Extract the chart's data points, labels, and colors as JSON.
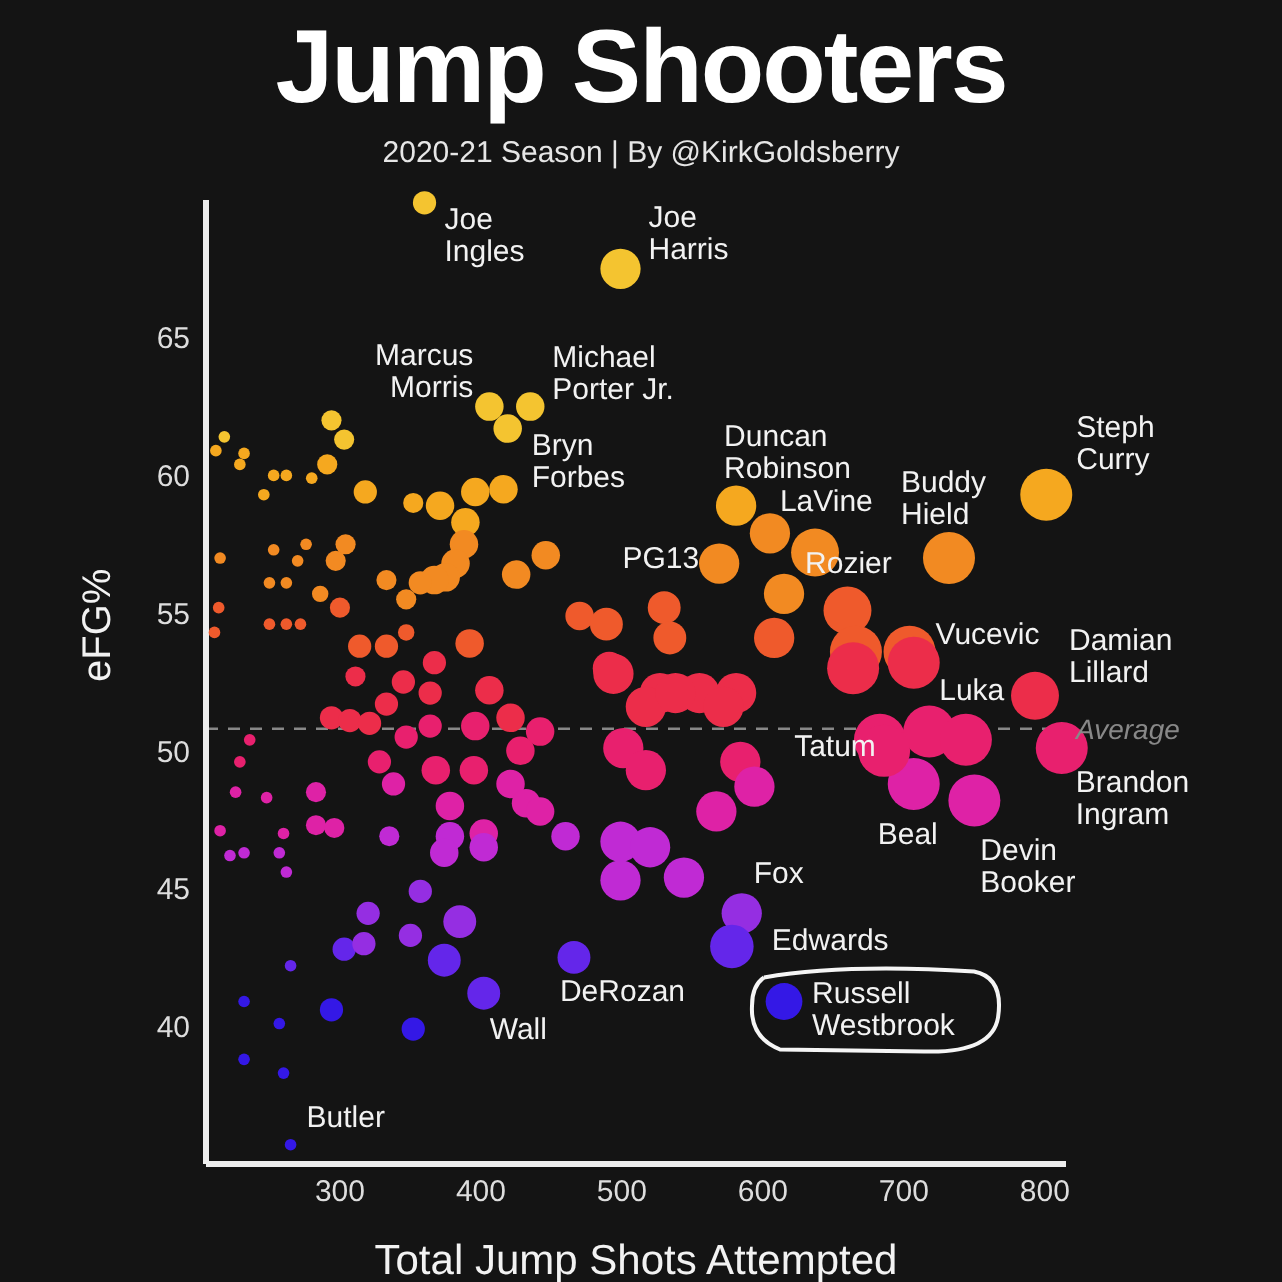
{
  "chart_data": {
    "type": "bubble",
    "title": "Jump Shooters",
    "subtitle": "2020-21 Season | By @KirkGoldsberry",
    "xlabel": "Total Jump Shots Attempted",
    "ylabel": "eFG%",
    "x": [
      360,
      499,
      406,
      435,
      419,
      581,
      605,
      637,
      569,
      732,
      801,
      704,
      793,
      718,
      812,
      683,
      707,
      750,
      585,
      578,
      615,
      466,
      402,
      265,
      294,
      303,
      291,
      318,
      352,
      371,
      396,
      416,
      389,
      388,
      382,
      375,
      367,
      357,
      446,
      425,
      333,
      347,
      304,
      297,
      300,
      286,
      470,
      489,
      530,
      534,
      347,
      218,
      212,
      232,
      229,
      253,
      262,
      246,
      280,
      215,
      253,
      276,
      270,
      250,
      262,
      250,
      262,
      272,
      214,
      211,
      615,
      660,
      608,
      666,
      491,
      314,
      333,
      367,
      311,
      345,
      364,
      406,
      392,
      494,
      527,
      555,
      333,
      294,
      307,
      321,
      347,
      364,
      396,
      421,
      442,
      428,
      328,
      368,
      395,
      421,
      501,
      517,
      338,
      283,
      378,
      432,
      442,
      567,
      378,
      402,
      402,
      374,
      283,
      296,
      335,
      460,
      499,
      520,
      499,
      544,
      357,
      320,
      385,
      350,
      303,
      317,
      374,
      294,
      352,
      265,
      232,
      257,
      232,
      260,
      236,
      229,
      226,
      248,
      260,
      215,
      222,
      232,
      257,
      262,
      517,
      538,
      581,
      572,
      584,
      594,
      664,
      707,
      686,
      744
    ],
    "values": [
      69.9,
      67.5,
      62.5,
      62.5,
      61.7,
      58.9,
      57.9,
      57.2,
      56.8,
      57.0,
      59.3,
      53.6,
      52.0,
      50.7,
      50.1,
      50.4,
      48.8,
      48.2,
      44.1,
      42.9,
      40.9,
      42.5,
      41.2,
      35.7,
      62.0,
      61.3,
      60.4,
      59.4,
      59.0,
      58.9,
      59.4,
      59.5,
      58.3,
      57.5,
      56.8,
      56.3,
      56.2,
      56.1,
      57.1,
      56.4,
      56.2,
      55.5,
      57.5,
      56.9,
      55.2,
      55.7,
      54.9,
      54.6,
      55.2,
      54.1,
      54.3,
      61.4,
      60.9,
      60.8,
      60.4,
      60.0,
      60.0,
      59.3,
      59.9,
      57.0,
      57.3,
      57.5,
      56.9,
      56.1,
      56.1,
      54.6,
      54.6,
      54.6,
      55.2,
      54.3,
      55.7,
      55.1,
      54.1,
      53.6,
      53.0,
      53.8,
      53.8,
      53.2,
      52.7,
      52.5,
      52.1,
      52.2,
      53.9,
      52.8,
      52.1,
      52.1,
      51.7,
      51.2,
      51.1,
      51.0,
      50.5,
      50.9,
      50.9,
      51.2,
      50.7,
      50.0,
      49.6,
      49.3,
      49.3,
      48.8,
      50.1,
      49.3,
      48.8,
      48.5,
      48.0,
      48.1,
      47.8,
      47.8,
      46.9,
      47.0,
      46.5,
      46.3,
      47.3,
      47.2,
      46.9,
      46.9,
      46.7,
      46.5,
      45.3,
      45.4,
      44.9,
      44.1,
      43.8,
      43.3,
      42.8,
      43.0,
      42.4,
      40.6,
      39.9,
      42.2,
      40.9,
      40.1,
      38.8,
      38.3,
      50.4,
      49.6,
      48.5,
      48.3,
      47.0,
      47.1,
      46.2,
      46.3,
      46.3,
      45.6,
      51.6,
      52.1,
      52.1,
      51.6,
      49.6,
      48.7,
      53.0,
      53.2,
      50.0,
      50.4
    ],
    "sizes": [
      0.2,
      0.6,
      0.3,
      0.3,
      0.3,
      0.6,
      0.6,
      0.85,
      0.6,
      1,
      1,
      1,
      0.85,
      1,
      1,
      1,
      1,
      1,
      0.6,
      0.7,
      0.5,
      0.4,
      0.4,
      0.05,
      0.15,
      0.15,
      0.15,
      0.2,
      0.15,
      0.3,
      0.3,
      0.3,
      0.3,
      0.3,
      0.3,
      0.3,
      0.3,
      0.2,
      0.3,
      0.3,
      0.15,
      0.15,
      0.15,
      0.15,
      0.15,
      0.1,
      0.3,
      0.4,
      0.4,
      0.4,
      0.1,
      0.05,
      0.05,
      0.05,
      0.05,
      0.05,
      0.05,
      0.05,
      0.05,
      0.05,
      0.05,
      0.05,
      0.05,
      0.05,
      0.05,
      0.05,
      0.05,
      0.05,
      0.05,
      0.05,
      0.6,
      0.85,
      0.6,
      1,
      0.4,
      0.2,
      0.2,
      0.2,
      0.15,
      0.2,
      0.2,
      0.3,
      0.3,
      0.6,
      0.6,
      0.6,
      0.2,
      0.2,
      0.2,
      0.2,
      0.2,
      0.2,
      0.3,
      0.3,
      0.3,
      0.3,
      0.2,
      0.3,
      0.3,
      0.3,
      0.6,
      0.6,
      0.2,
      0.15,
      0.3,
      0.3,
      0.3,
      0.6,
      0.3,
      0.3,
      0.3,
      0.3,
      0.15,
      0.15,
      0.15,
      0.3,
      0.6,
      0.6,
      0.6,
      0.6,
      0.2,
      0.2,
      0.4,
      0.2,
      0.2,
      0.2,
      0.4,
      0.2,
      0.2,
      0.05,
      0.05,
      0.05,
      0.05,
      0.05,
      0.05,
      0.05,
      0.05,
      0.05,
      0.05,
      0.05,
      0.05,
      0.05,
      0.05,
      0.05,
      0.6,
      0.6,
      0.6,
      0.6,
      0.6,
      0.6,
      1,
      1,
      1,
      1
    ],
    "colors": [
      "#f4c430",
      "#f4c430",
      "#f4c430",
      "#f4c430",
      "#f4c430",
      "#f5a81f",
      "#f28a22",
      "#f28a22",
      "#f28a22",
      "#f28a22",
      "#f5a81f",
      "#ef5a2c",
      "#ec2d4a",
      "#e8206e",
      "#e8206e",
      "#e8206e",
      "#de22a6",
      "#de22a6",
      "#952ee2",
      "#6426ea",
      "#3418e6",
      "#6426ea",
      "#6426ea",
      "#3418e6",
      "#f4c430",
      "#f4c430",
      "#f5a81f",
      "#f5a81f",
      "#f5a81f",
      "#f5a81f",
      "#f5a81f",
      "#f5a81f",
      "#f5a81f",
      "#f28a22",
      "#f28a22",
      "#f28a22",
      "#f28a22",
      "#f28a22",
      "#f28a22",
      "#f28a22",
      "#f28a22",
      "#f28a22",
      "#f28a22",
      "#f28a22",
      "#ef5a2c",
      "#f28a22",
      "#ef5a2c",
      "#ef5a2c",
      "#ef5a2c",
      "#ef5a2c",
      "#ef5a2c",
      "#f4c430",
      "#f5a81f",
      "#f5a81f",
      "#f5a81f",
      "#f5a81f",
      "#f5a81f",
      "#f5a81f",
      "#f5a81f",
      "#f28a22",
      "#f28a22",
      "#f28a22",
      "#f28a22",
      "#f28a22",
      "#f28a22",
      "#ef5a2c",
      "#ef5a2c",
      "#ef5a2c",
      "#ef5a2c",
      "#ef5a2c",
      "#f28a22",
      "#ef5a2c",
      "#ef5a2c",
      "#ef5a2c",
      "#ec2d4a",
      "#ef5a2c",
      "#ef5a2c",
      "#ec2d4a",
      "#ec2d4a",
      "#ec2d4a",
      "#ec2d4a",
      "#ec2d4a",
      "#ef5a2c",
      "#ec2d4a",
      "#ec2d4a",
      "#ec2d4a",
      "#ec2d4a",
      "#ec2d4a",
      "#ec2d4a",
      "#ec2d4a",
      "#e8206e",
      "#e8206e",
      "#e8206e",
      "#ec2d4a",
      "#e8206e",
      "#e8206e",
      "#e8206e",
      "#e8206e",
      "#e8206e",
      "#de22a6",
      "#e8206e",
      "#e8206e",
      "#de22a6",
      "#de22a6",
      "#de22a6",
      "#de22a6",
      "#de22a6",
      "#de22a6",
      "#c02ad4",
      "#de22a6",
      "#c02ad4",
      "#c02ad4",
      "#de22a6",
      "#de22a6",
      "#c02ad4",
      "#c02ad4",
      "#c02ad4",
      "#c02ad4",
      "#c02ad4",
      "#c02ad4",
      "#952ee2",
      "#952ee2",
      "#952ee2",
      "#952ee2",
      "#6426ea",
      "#952ee2",
      "#6426ea",
      "#3418e6",
      "#3418e6",
      "#6426ea",
      "#3418e6",
      "#3418e6",
      "#3418e6",
      "#3418e6",
      "#e8206e",
      "#e8206e",
      "#de22a6",
      "#de22a6",
      "#de22a6",
      "#de22a6",
      "#c02ad4",
      "#c02ad4",
      "#c02ad4",
      "#c02ad4",
      "#ec2d4a",
      "#ec2d4a",
      "#ec2d4a",
      "#ec2d4a",
      "#e8206e",
      "#de22a6",
      "#ec2d4a",
      "#ec2d4a",
      "#e8206e",
      "#e8206e"
    ],
    "xlim": [
      205,
      815
    ],
    "xticks": [
      300,
      400,
      500,
      600,
      700,
      800
    ],
    "ylim": [
      35,
      70
    ],
    "yticks": [
      40,
      45,
      50,
      55,
      60,
      65
    ],
    "ref_lines": [
      {
        "axis": "y",
        "value": 50.8,
        "label": "Average",
        "color": "#888888",
        "line_style": "dashed"
      }
    ],
    "annotations": [
      {
        "text": "Joe Ingles",
        "x": 360,
        "y": 69.9
      },
      {
        "text": "Joe Harris",
        "x": 499,
        "y": 67.5
      },
      {
        "text": "Marcus Morris",
        "x": 406,
        "y": 62.5
      },
      {
        "text": "Michael Porter Jr.",
        "x": 435,
        "y": 62.5
      },
      {
        "text": "Bryn Forbes",
        "x": 419,
        "y": 61.7
      },
      {
        "text": "Duncan Robinson",
        "x": 581,
        "y": 58.9
      },
      {
        "text": "LaVine",
        "x": 605,
        "y": 57.9
      },
      {
        "text": "Rozier",
        "x": 637,
        "y": 57.2
      },
      {
        "text": "PG13",
        "x": 569,
        "y": 56.8
      },
      {
        "text": "Buddy Hield",
        "x": 732,
        "y": 57.0
      },
      {
        "text": "Steph Curry",
        "x": 801,
        "y": 59.3
      },
      {
        "text": "Vucevic",
        "x": 704,
        "y": 53.6
      },
      {
        "text": "Damian Lillard",
        "x": 793,
        "y": 52.0
      },
      {
        "text": "Luka",
        "x": 718,
        "y": 50.7
      },
      {
        "text": "Brandon Ingram",
        "x": 812,
        "y": 50.1
      },
      {
        "text": "Tatum",
        "x": 683,
        "y": 50.4
      },
      {
        "text": "Beal",
        "x": 707,
        "y": 48.8
      },
      {
        "text": "Devin Booker",
        "x": 750,
        "y": 48.2
      },
      {
        "text": "Fox",
        "x": 585,
        "y": 44.1
      },
      {
        "text": "Edwards",
        "x": 578,
        "y": 42.9
      },
      {
        "text": "Russell Westbrook",
        "x": 615,
        "y": 40.9
      },
      {
        "text": "DeRozan",
        "x": 466,
        "y": 42.5
      },
      {
        "text": "Wall",
        "x": 402,
        "y": 41.2
      },
      {
        "text": "Butler",
        "x": 265,
        "y": 35.7
      }
    ]
  }
}
